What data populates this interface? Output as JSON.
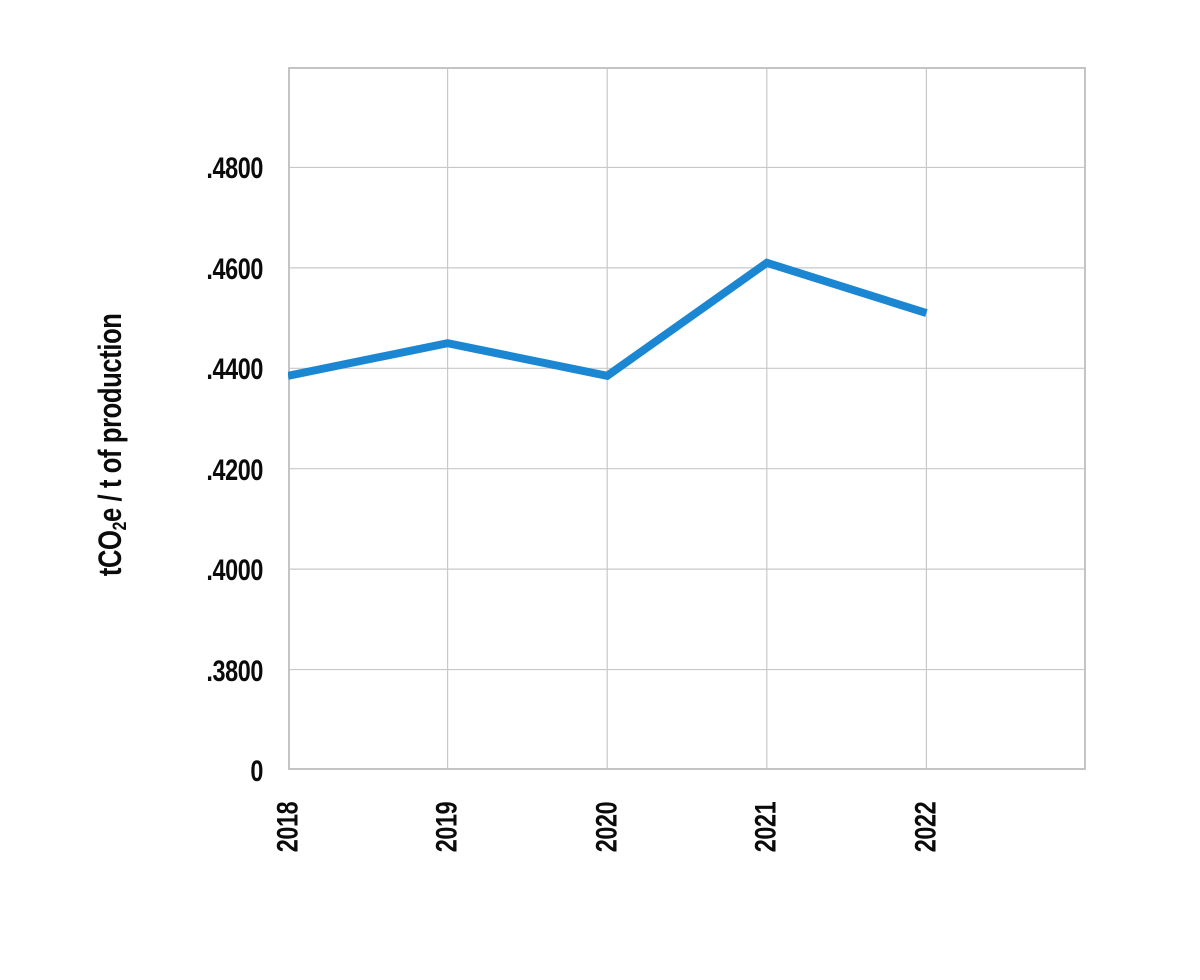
{
  "page": {
    "background": "#ffffff"
  },
  "chart_data": {
    "type": "line",
    "title": "",
    "categories": [
      "2018",
      "2019",
      "2020",
      "2021",
      "2022"
    ],
    "series": [
      {
        "name": "tCO2e per t of production",
        "color": "#1b86d2",
        "values": [
          0.4385,
          0.445,
          0.4385,
          0.461,
          0.451
        ]
      }
    ],
    "xlabel": "",
    "ylabel": "tCO2e / t of production",
    "ylabel_parts": {
      "prefix": "tCO",
      "subscript": "2",
      "suffix": "e / t of production"
    },
    "y_tick_labels_top_to_bottom": [
      ".4800",
      ".4600",
      ".4400",
      ".4200",
      ".4000",
      ".3800",
      "0"
    ],
    "y_axis": {
      "top_gridline_value": 0.5,
      "step_per_gridline": 0.02,
      "gridline_rows": 7,
      "zero_break_at_bottom": true
    },
    "x_tick_rotation_deg": -90,
    "grid": true,
    "legend": "none",
    "gridline_color": "#c8c8c8",
    "border_color": "#c4c4c4",
    "text_color": "#0b0b0b",
    "line_width": 8
  }
}
